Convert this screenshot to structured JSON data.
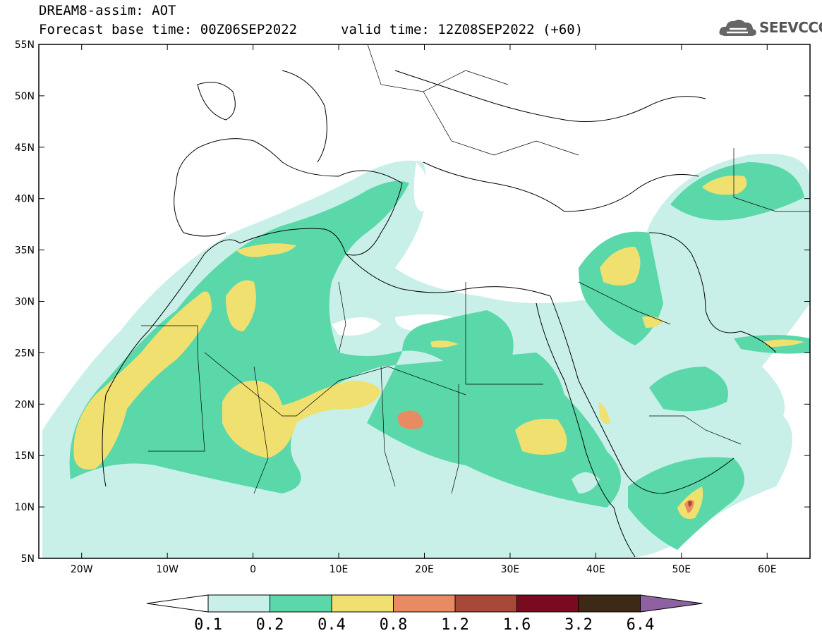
{
  "header": {
    "line1": "DREAM8-assim: AOT",
    "base_time": "Forecast base time: 00Z06SEP2022",
    "valid_time": "valid time: 12Z08SEP2022 (+60)"
  },
  "logo": {
    "text": "SEEVCCC",
    "icon": "cloud-icon"
  },
  "map": {
    "lat_labels": [
      "55N",
      "50N",
      "45N",
      "40N",
      "35N",
      "30N",
      "25N",
      "20N",
      "15N",
      "10N",
      "5N"
    ],
    "lon_labels": [
      "20W",
      "10W",
      "0",
      "10E",
      "20E",
      "30E",
      "40E",
      "50E",
      "60E"
    ],
    "extent": {
      "lon": [
        -25,
        65
      ],
      "lat": [
        5,
        55
      ]
    }
  },
  "colorbar": {
    "labels": [
      "0.1",
      "0.2",
      "0.4",
      "0.8",
      "1.2",
      "1.6",
      "3.2",
      "6.4"
    ],
    "colors": [
      "#c8f0e8",
      "#5ad8aa",
      "#f0e070",
      "#e88a62",
      "#a84838",
      "#7a0a20",
      "#3c2a16",
      "#8e62a0"
    ]
  }
}
